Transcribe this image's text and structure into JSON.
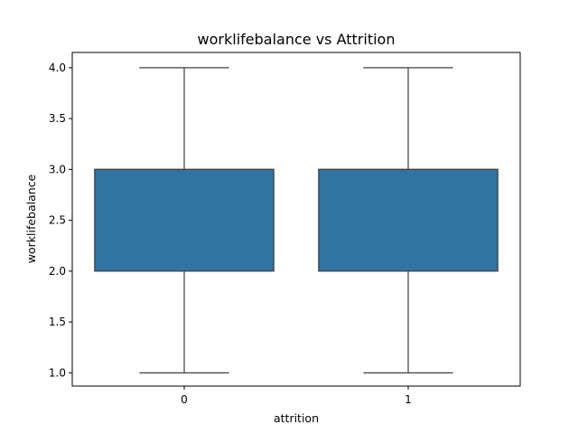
{
  "chart_data": {
    "type": "box",
    "title": "worklifebalance vs Attrition",
    "xlabel": "attrition",
    "ylabel": "worklifebalance",
    "categories": [
      "0",
      "1"
    ],
    "ylim": [
      0.87,
      4.15
    ],
    "yticks": [
      "1.0",
      "1.5",
      "2.0",
      "2.5",
      "3.0",
      "3.5",
      "4.0"
    ],
    "boxes": [
      {
        "category": "0",
        "whisker_low": 1.0,
        "q1": 2.0,
        "median": 3.0,
        "q3": 3.0,
        "whisker_high": 4.0
      },
      {
        "category": "1",
        "whisker_low": 1.0,
        "q1": 2.0,
        "median": 3.0,
        "q3": 3.0,
        "whisker_high": 4.0
      }
    ],
    "box_color": "#3274a1",
    "line_color": "#3f3f3f",
    "grid": false,
    "legend": "none"
  }
}
